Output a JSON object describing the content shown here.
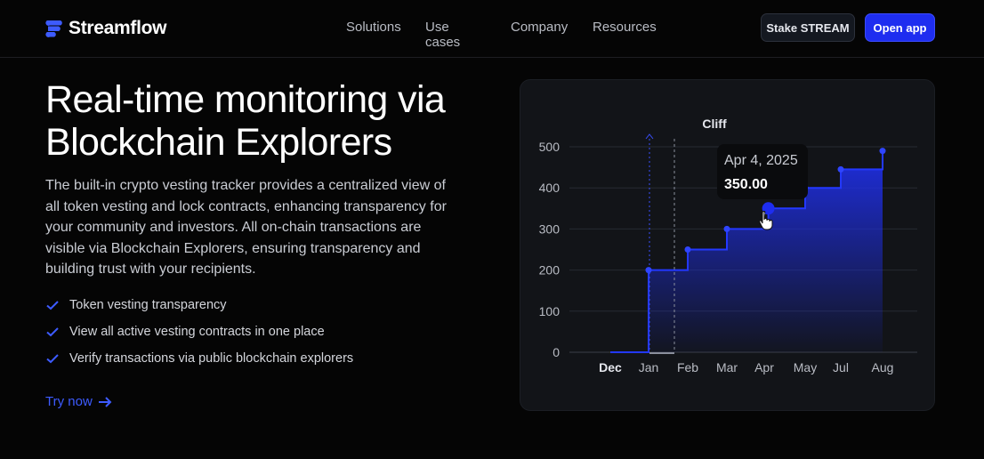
{
  "brand": {
    "name": "Streamflow",
    "icon": "streamflow-logo-icon"
  },
  "nav": {
    "items": [
      "Solutions",
      "Use cases",
      "Company",
      "Resources"
    ],
    "stake_label": "Stake STREAM",
    "open_label": "Open app"
  },
  "hero": {
    "title": "Real-time monitoring via Blockchain Explorers",
    "description": "The built-in crypto vesting tracker provides a centralized view of all token vesting and lock contracts, enhancing transparency for your community and investors. All on-chain transactions are visible via Blockchain Explorers, ensuring transparency and building trust with your recipients.",
    "features": [
      "Token vesting transparency",
      "View all active vesting contracts in one place",
      "Verify transactions via public blockchain explorers"
    ],
    "feature_icon": "check-icon",
    "cta_label": "Try now",
    "cta_icon": "arrow-right-icon"
  },
  "colors": {
    "accent": "#1e2df0",
    "link": "#3d5bff",
    "chart_line": "#2338ff"
  },
  "chart_data": {
    "type": "area",
    "title": "",
    "xlabel": "",
    "ylabel": "",
    "cliff_label": "Cliff",
    "categories": [
      "Dec",
      "Jan",
      "Feb",
      "Mar",
      "Apr",
      "May",
      "Jul",
      "Aug"
    ],
    "y_ticks": [
      0,
      100,
      200,
      300,
      400,
      500
    ],
    "ylim": [
      0,
      500
    ],
    "step": "after",
    "points": [
      {
        "x": "Dec 1, 2024",
        "y": 0
      },
      {
        "x": "Jan 1, 2025",
        "y": 200
      },
      {
        "x": "Feb 1, 2025",
        "y": 250
      },
      {
        "x": "Mar 1, 2025",
        "y": 300
      },
      {
        "x": "Apr 4, 2025",
        "y": 350
      },
      {
        "x": "May 1, 2025",
        "y": 400
      },
      {
        "x": "Jul 1, 2025",
        "y": 445
      },
      {
        "x": "Aug 1, 2025",
        "y": 490
      }
    ],
    "tooltip": {
      "date": "Apr 4, 2025",
      "value": "350.00"
    },
    "grid": true,
    "legend": "none"
  }
}
